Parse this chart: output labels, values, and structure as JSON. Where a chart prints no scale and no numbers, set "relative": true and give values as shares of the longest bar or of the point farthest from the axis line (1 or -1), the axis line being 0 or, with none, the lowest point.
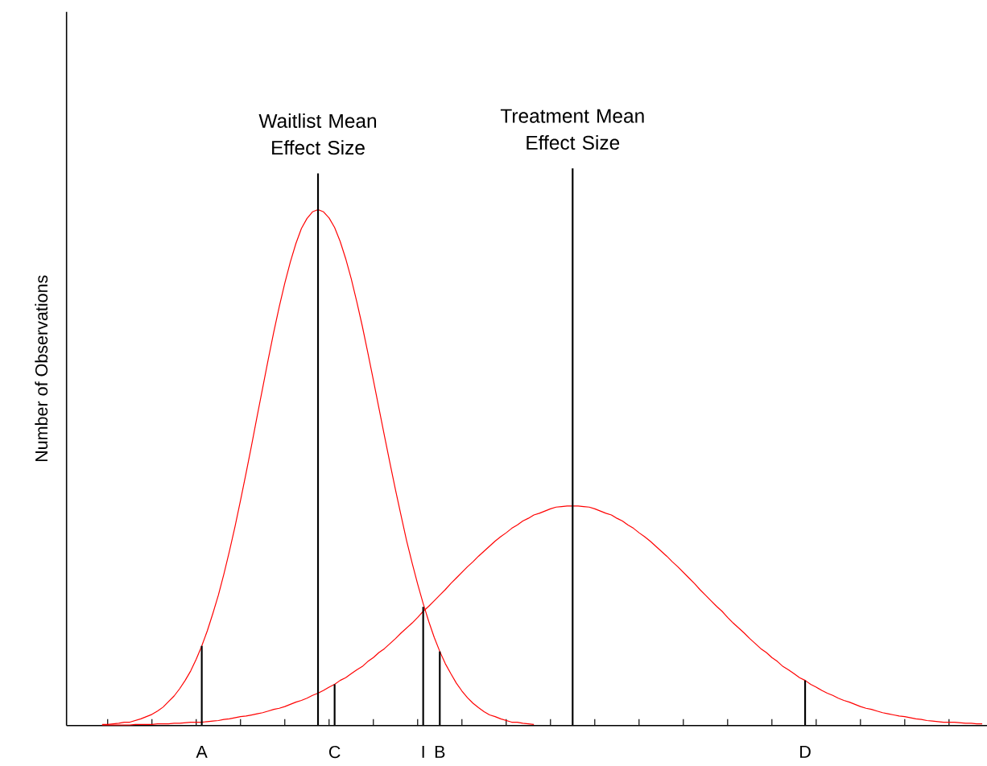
{
  "chart_data": {
    "type": "line",
    "relative": true,
    "ylabel": "Number of Observations",
    "tick_labels": "x",
    "marker": "none",
    "categories": [
      null,
      null,
      null,
      null,
      null,
      null,
      null,
      null,
      null,
      null,
      null,
      null,
      null,
      null,
      null,
      null,
      null,
      null,
      "A",
      null,
      null,
      null,
      null,
      null,
      null,
      null,
      null,
      null,
      null,
      null,
      null,
      null,
      null,
      null,
      null,
      null,
      null,
      null,
      null,
      null,
      null,
      null,
      "C",
      null,
      null,
      null,
      null,
      null,
      null,
      null,
      null,
      null,
      null,
      null,
      null,
      null,
      null,
      null,
      "I",
      null,
      null,
      "B",
      null,
      null,
      null,
      null,
      null,
      null,
      null,
      null,
      null,
      null,
      null,
      null,
      null,
      null,
      null,
      null,
      null,
      null,
      null,
      null,
      null,
      null,
      null,
      null,
      null,
      null,
      null,
      null,
      null,
      null,
      null,
      null,
      null,
      null,
      null,
      null,
      null,
      null,
      null,
      null,
      null,
      null,
      null,
      null,
      null,
      null,
      null,
      null,
      null,
      null,
      null,
      null,
      null,
      null,
      null,
      null,
      null,
      null,
      null,
      null,
      null,
      null,
      null,
      null,
      null,
      "D",
      null,
      null,
      null,
      null,
      null,
      null,
      null,
      null,
      null,
      null,
      null,
      null,
      null,
      null,
      null,
      null,
      null,
      null,
      null,
      null,
      null,
      null,
      null,
      null,
      null,
      null,
      null,
      null,
      null,
      null,
      null,
      null
    ],
    "series": [
      {
        "color": "#ff0000",
        "values": [
          0.002,
          0.002,
          0.003,
          0.004,
          0.006,
          0.006,
          0.009,
          0.012,
          0.016,
          0.02,
          0.026,
          0.033,
          0.043,
          0.053,
          0.066,
          0.081,
          0.098,
          0.119,
          0.143,
          0.17,
          0.201,
          0.234,
          0.272,
          0.313,
          0.357,
          0.404,
          0.453,
          0.503,
          0.555,
          0.606,
          0.657,
          0.706,
          0.752,
          0.794,
          0.832,
          0.865,
          0.892,
          0.91,
          0.922,
          0.926,
          0.922,
          0.911,
          0.894,
          0.869,
          0.838,
          0.802,
          0.761,
          0.717,
          0.669,
          0.62,
          0.57,
          0.52,
          0.471,
          0.423,
          0.377,
          0.332,
          0.292,
          0.254,
          0.219,
          0.187,
          0.158,
          0.133,
          0.111,
          0.093,
          0.076,
          0.062,
          0.05,
          0.04,
          0.032,
          0.025,
          0.019,
          0.016,
          0.012,
          0.009,
          0.006,
          0.006,
          0.004,
          0.003,
          0.002,
          null,
          null,
          null,
          null,
          null,
          null,
          null,
          null,
          null,
          null,
          null,
          null,
          null,
          null,
          null,
          null,
          null,
          null,
          null,
          null,
          null,
          null,
          null,
          null,
          null,
          null,
          null,
          null,
          null,
          null,
          null,
          null,
          null,
          null,
          null,
          null,
          null,
          null,
          null,
          null,
          null,
          null,
          null,
          null,
          null,
          null,
          null,
          null,
          null,
          null,
          null,
          null,
          null,
          null,
          null,
          null,
          null,
          null,
          null,
          null,
          null,
          null,
          null,
          null,
          null,
          null,
          null,
          null,
          null,
          null,
          null,
          null,
          null,
          null,
          null,
          null,
          null,
          null,
          null,
          null,
          null
        ]
      },
      {
        "color": "#ff0000",
        "values": [
          0.001,
          0.001,
          0.001,
          0.001,
          0.001,
          0.001,
          0.002,
          0.002,
          0.002,
          0.002,
          0.003,
          0.003,
          0.003,
          0.004,
          0.004,
          0.005,
          0.006,
          0.006,
          0.006,
          0.007,
          0.008,
          0.009,
          0.011,
          0.012,
          0.014,
          0.016,
          0.017,
          0.019,
          0.021,
          0.023,
          0.026,
          0.029,
          0.031,
          0.034,
          0.038,
          0.042,
          0.045,
          0.049,
          0.054,
          0.058,
          0.063,
          0.069,
          0.074,
          0.081,
          0.086,
          0.093,
          0.1,
          0.106,
          0.115,
          0.122,
          0.131,
          0.138,
          0.147,
          0.156,
          0.166,
          0.175,
          0.184,
          0.194,
          0.205,
          0.214,
          0.224,
          0.234,
          0.244,
          0.255,
          0.265,
          0.275,
          0.285,
          0.294,
          0.304,
          0.313,
          0.322,
          0.331,
          0.339,
          0.346,
          0.354,
          0.36,
          0.367,
          0.372,
          0.378,
          0.381,
          0.385,
          0.389,
          0.392,
          0.393,
          0.394,
          0.394,
          0.394,
          0.393,
          0.392,
          0.389,
          0.385,
          0.381,
          0.378,
          0.372,
          0.367,
          0.36,
          0.354,
          0.346,
          0.339,
          0.331,
          0.322,
          0.313,
          0.304,
          0.294,
          0.285,
          0.275,
          0.265,
          0.255,
          0.244,
          0.234,
          0.224,
          0.214,
          0.205,
          0.194,
          0.184,
          0.175,
          0.166,
          0.156,
          0.147,
          0.138,
          0.131,
          0.122,
          0.115,
          0.106,
          0.1,
          0.093,
          0.086,
          0.081,
          0.074,
          0.069,
          0.063,
          0.058,
          0.054,
          0.049,
          0.045,
          0.042,
          0.038,
          0.034,
          0.031,
          0.029,
          0.026,
          0.023,
          0.021,
          0.019,
          0.017,
          0.016,
          0.014,
          0.012,
          0.011,
          0.009,
          0.008,
          0.007,
          0.006,
          0.006,
          0.006,
          0.005,
          0.004,
          0.004,
          0.003,
          0.003
        ]
      },
      {
        "type": "bar",
        "color": "#000000",
        "values": [
          null,
          null,
          null,
          null,
          null,
          null,
          null,
          null,
          null,
          null,
          null,
          null,
          null,
          null,
          null,
          null,
          null,
          null,
          0.143,
          null,
          null,
          null,
          null,
          null,
          null,
          null,
          null,
          null,
          null,
          null,
          null,
          null,
          null,
          null,
          null,
          null,
          null,
          null,
          null,
          null,
          null,
          null,
          0.074,
          null,
          null,
          null,
          null,
          null,
          null,
          null,
          null,
          null,
          null,
          null,
          null,
          null,
          null,
          null,
          0.213,
          null,
          null,
          0.133,
          null,
          null,
          null,
          null,
          null,
          null,
          null,
          null,
          null,
          null,
          null,
          null,
          null,
          null,
          null,
          null,
          null,
          null,
          null,
          null,
          null,
          null,
          null,
          null,
          null,
          null,
          null,
          null,
          null,
          null,
          null,
          null,
          null,
          null,
          null,
          null,
          null,
          null,
          null,
          null,
          null,
          null,
          null,
          null,
          null,
          null,
          null,
          null,
          null,
          null,
          null,
          null,
          null,
          null,
          null,
          null,
          null,
          null,
          null,
          null,
          null,
          null,
          null,
          null,
          null,
          0.081,
          null,
          null,
          null,
          null,
          null,
          null,
          null,
          null,
          null,
          null,
          null,
          null,
          null,
          null,
          null,
          null,
          null,
          null,
          null,
          null,
          null,
          null,
          null,
          null,
          null,
          null,
          null,
          null,
          null,
          null,
          null,
          null
        ]
      },
      {
        "type": "bar",
        "color": "#000000",
        "values": [
          null,
          null,
          null,
          null,
          null,
          null,
          null,
          null,
          null,
          null,
          null,
          null,
          null,
          null,
          null,
          null,
          null,
          null,
          null,
          null,
          null,
          null,
          null,
          null,
          null,
          null,
          null,
          null,
          null,
          null,
          null,
          null,
          null,
          null,
          null,
          null,
          null,
          null,
          null,
          0.991,
          null,
          null,
          null,
          null,
          null,
          null,
          null,
          null,
          null,
          null,
          null,
          null,
          null,
          null,
          null,
          null,
          null,
          null,
          null,
          null,
          null,
          null,
          null,
          null,
          null,
          null,
          null,
          null,
          null,
          null,
          null,
          null,
          null,
          null,
          null,
          null,
          null,
          null,
          null,
          null,
          null,
          null,
          null,
          null,
          null,
          1,
          null,
          null,
          null,
          null,
          null,
          null,
          null,
          null,
          null,
          null,
          null,
          null,
          null,
          null,
          null,
          null,
          null,
          null,
          null,
          null,
          null,
          null,
          null,
          null,
          null,
          null,
          null,
          null,
          null,
          null,
          null,
          null,
          null,
          null,
          null,
          null,
          null,
          null,
          null,
          null,
          null,
          null,
          null,
          null,
          null,
          null,
          null,
          null,
          null,
          null,
          null,
          null,
          null,
          null,
          null,
          null,
          null,
          null,
          null,
          null,
          null,
          null,
          null,
          null,
          null,
          null,
          null,
          null,
          null,
          null,
          null,
          null,
          null,
          null
        ]
      }
    ],
    "annotations": [
      "Waitlist Mean Effect Size",
      "Treatment Mean Effect Size"
    ]
  }
}
